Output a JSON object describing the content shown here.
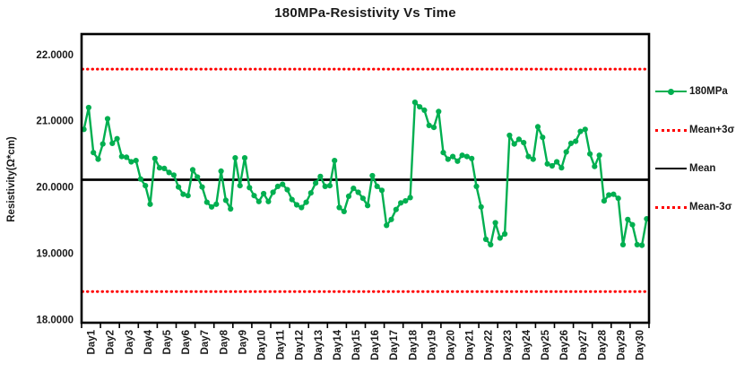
{
  "title": "180MPa-Resistivity Vs Time",
  "y_axis": {
    "label": "Resistivity(Ω*cm)",
    "tick_labels": [
      "22.0000",
      "21.0000",
      "20.0000",
      "19.0000",
      "18.0000"
    ],
    "tick_values": [
      22,
      21,
      20,
      19,
      18
    ]
  },
  "legend": {
    "items": [
      {
        "label": "180MPa",
        "style": "green-line-marker"
      },
      {
        "label": "Mean+3σ",
        "style": "red-dotted"
      },
      {
        "label": "Mean",
        "style": "black-solid"
      },
      {
        "label": "Mean-3σ",
        "style": "red-dotted"
      }
    ]
  },
  "colors": {
    "series": "#00AF50",
    "control_limits": "#FF0000",
    "mean": "#000000",
    "text": "#1a1a1a",
    "background": "#ffffff"
  },
  "chart_data": {
    "type": "line",
    "title": "180MPa-Resistivity Vs Time",
    "xlabel": "",
    "ylabel": "Resistivity(Ω*cm)",
    "ylim": [
      17.95,
      22.31
    ],
    "grid": false,
    "legend_position": "right",
    "categories": [
      "Day1",
      "Day2",
      "Day3",
      "Day4",
      "Day5",
      "Day6",
      "Day7",
      "Day8",
      "Day9",
      "Day10",
      "Day11",
      "Day12",
      "Day13",
      "Day14",
      "Day15",
      "Day16",
      "Day17",
      "Day18",
      "Day19",
      "Day20",
      "Day21",
      "Day22",
      "Day23",
      "Day24",
      "Day25",
      "Day26",
      "Day27",
      "Day28",
      "Day29",
      "Day30"
    ],
    "points_per_category": 4,
    "series": [
      {
        "name": "180MPa",
        "values": [
          20.87,
          21.2,
          20.52,
          20.42,
          20.65,
          21.03,
          20.66,
          20.73,
          20.46,
          20.45,
          20.38,
          20.4,
          20.12,
          20.02,
          19.74,
          20.43,
          20.29,
          20.28,
          20.22,
          20.18,
          20.0,
          19.89,
          19.87,
          20.26,
          20.15,
          20.0,
          19.77,
          19.7,
          19.74,
          20.24,
          19.8,
          19.67,
          20.44,
          20.02,
          20.44,
          19.99,
          19.87,
          19.78,
          19.9,
          19.78,
          19.92,
          20.01,
          20.04,
          19.96,
          19.81,
          19.73,
          19.69,
          19.77,
          19.91,
          20.06,
          20.16,
          20.01,
          20.02,
          20.4,
          19.69,
          19.63,
          19.86,
          19.98,
          19.92,
          19.83,
          19.72,
          20.17,
          20.01,
          19.95,
          19.42,
          19.51,
          19.66,
          19.76,
          19.79,
          19.84,
          21.28,
          21.21,
          21.16,
          20.93,
          20.9,
          21.14,
          20.52,
          20.42,
          20.46,
          20.39,
          20.48,
          20.46,
          20.43,
          20.01,
          19.7,
          19.21,
          19.13,
          19.46,
          19.23,
          19.29,
          20.78,
          20.65,
          20.72,
          20.67,
          20.46,
          20.42,
          20.91,
          20.75,
          20.35,
          20.32,
          20.38,
          20.29,
          20.53,
          20.66,
          20.69,
          20.84,
          20.87,
          20.5,
          20.31,
          20.48,
          19.79,
          19.88,
          19.89,
          19.83,
          19.13,
          19.51,
          19.43,
          19.13,
          19.12,
          19.52
        ]
      }
    ],
    "reference_lines": [
      {
        "name": "Mean+3σ",
        "value": 21.78,
        "style": "dotted",
        "color": "#FF0000"
      },
      {
        "name": "Mean",
        "value": 20.11,
        "style": "solid",
        "color": "#000000"
      },
      {
        "name": "Mean-3σ",
        "value": 18.42,
        "style": "dotted",
        "color": "#FF0000"
      }
    ]
  }
}
